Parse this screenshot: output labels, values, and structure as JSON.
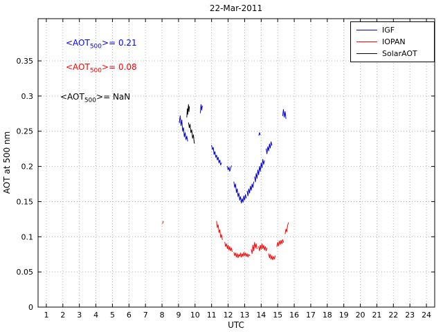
{
  "annotations": [
    {
      "prefix": "<AOT",
      "sub": "500",
      "value": ">= 0.21",
      "color": "#0000ff"
    },
    {
      "prefix": "<AOT",
      "sub": "500",
      "value": ">= 0.08",
      "color": "#ff0000"
    },
    {
      "prefix": "<AOT",
      "sub": "500",
      "value": ">= NaN",
      "color": "#000000"
    }
  ],
  "chart_data": {
    "type": "line",
    "title": "22-Mar-2011",
    "xlabel": "UTC",
    "ylabel": "AOT at 500 nm",
    "xlim": [
      0.5,
      24.5
    ],
    "ylim": [
      0,
      0.41
    ],
    "xticks": [
      1,
      2,
      3,
      4,
      5,
      6,
      7,
      8,
      9,
      10,
      11,
      12,
      13,
      14,
      15,
      16,
      17,
      18,
      19,
      20,
      21,
      22,
      23,
      24
    ],
    "yticks": [
      0,
      0.05,
      0.1,
      0.15,
      0.2,
      0.25,
      0.3,
      0.35
    ],
    "grid": true,
    "grid_color": "#b0b0b0",
    "legend": {
      "position": "upper right",
      "entries": [
        {
          "label": "IGF",
          "color": "#0000cc"
        },
        {
          "label": "IOPAN",
          "color": "#ff0000"
        },
        {
          "label": "SolarAOT",
          "color": "#000000"
        }
      ]
    },
    "series": [
      {
        "name": "IGF",
        "color": "#0000cc",
        "mean_aot_500": 0.21,
        "segments": [
          [
            [
              9.05,
              0.262
            ],
            [
              9.1,
              0.272
            ],
            [
              9.15,
              0.258
            ],
            [
              9.2,
              0.266
            ],
            [
              9.25,
              0.25
            ],
            [
              9.3,
              0.255
            ],
            [
              9.35,
              0.242
            ],
            [
              9.4,
              0.248
            ],
            [
              9.45,
              0.238
            ],
            [
              9.5,
              0.243
            ],
            [
              9.55,
              0.236
            ]
          ],
          [
            [
              10.32,
              0.276
            ],
            [
              10.36,
              0.288
            ],
            [
              10.4,
              0.28
            ],
            [
              10.44,
              0.286
            ]
          ],
          [
            [
              11.0,
              0.23
            ],
            [
              11.05,
              0.224
            ],
            [
              11.1,
              0.227
            ],
            [
              11.15,
              0.217
            ],
            [
              11.2,
              0.221
            ],
            [
              11.25,
              0.213
            ],
            [
              11.3,
              0.216
            ],
            [
              11.35,
              0.209
            ],
            [
              11.4,
              0.213
            ],
            [
              11.45,
              0.205
            ],
            [
              11.5,
              0.209
            ],
            [
              11.55,
              0.202
            ],
            [
              11.6,
              0.205
            ]
          ],
          [
            [
              11.95,
              0.2
            ],
            [
              12.0,
              0.195
            ],
            [
              12.05,
              0.199
            ],
            [
              12.1,
              0.193
            ],
            [
              12.15,
              0.197
            ],
            [
              12.2,
              0.201
            ]
          ],
          [
            [
              12.35,
              0.178
            ],
            [
              12.4,
              0.17
            ],
            [
              12.45,
              0.175
            ],
            [
              12.5,
              0.163
            ],
            [
              12.55,
              0.168
            ],
            [
              12.6,
              0.157
            ],
            [
              12.65,
              0.162
            ],
            [
              12.7,
              0.152
            ],
            [
              12.75,
              0.157
            ],
            [
              12.8,
              0.148
            ],
            [
              12.85,
              0.154
            ],
            [
              12.9,
              0.149
            ],
            [
              12.95,
              0.158
            ],
            [
              13.0,
              0.152
            ],
            [
              13.05,
              0.16
            ],
            [
              13.1,
              0.155
            ]
          ],
          [
            [
              13.15,
              0.165
            ],
            [
              13.2,
              0.158
            ],
            [
              13.25,
              0.168
            ],
            [
              13.3,
              0.162
            ],
            [
              13.35,
              0.172
            ],
            [
              13.4,
              0.166
            ],
            [
              13.45,
              0.175
            ],
            [
              13.5,
              0.17
            ],
            [
              13.55,
              0.178
            ]
          ],
          [
            [
              13.6,
              0.185
            ],
            [
              13.65,
              0.178
            ],
            [
              13.7,
              0.19
            ],
            [
              13.75,
              0.183
            ],
            [
              13.8,
              0.195
            ],
            [
              13.85,
              0.188
            ],
            [
              13.9,
              0.2
            ],
            [
              13.95,
              0.193
            ],
            [
              14.0,
              0.205
            ],
            [
              14.05,
              0.198
            ],
            [
              14.1,
              0.21
            ],
            [
              14.15,
              0.203
            ],
            [
              14.2,
              0.208
            ]
          ],
          [
            [
              13.86,
              0.244
            ],
            [
              13.9,
              0.248
            ],
            [
              13.94,
              0.245
            ]
          ],
          [
            [
              14.3,
              0.225
            ],
            [
              14.35,
              0.218
            ],
            [
              14.4,
              0.228
            ],
            [
              14.45,
              0.222
            ],
            [
              14.5,
              0.232
            ],
            [
              14.55,
              0.226
            ],
            [
              14.6,
              0.235
            ],
            [
              14.65,
              0.23
            ]
          ],
          [
            [
              15.3,
              0.272
            ],
            [
              15.35,
              0.281
            ],
            [
              15.4,
              0.27
            ],
            [
              15.45,
              0.278
            ],
            [
              15.5,
              0.268
            ]
          ]
        ]
      },
      {
        "name": "IOPAN",
        "color": "#ff0000",
        "mean_aot_500": 0.08,
        "segments": [
          [
            [
              8.03,
              0.119
            ],
            [
              8.08,
              0.122
            ]
          ],
          [
            [
              11.3,
              0.122
            ],
            [
              11.35,
              0.113
            ],
            [
              11.4,
              0.117
            ],
            [
              11.45,
              0.106
            ],
            [
              11.5,
              0.11
            ],
            [
              11.55,
              0.099
            ],
            [
              11.6,
              0.103
            ],
            [
              11.65,
              0.096
            ]
          ],
          [
            [
              11.8,
              0.092
            ],
            [
              11.85,
              0.086
            ],
            [
              11.9,
              0.09
            ],
            [
              11.95,
              0.083
            ],
            [
              12.0,
              0.088
            ],
            [
              12.05,
              0.081
            ],
            [
              12.1,
              0.086
            ],
            [
              12.15,
              0.08
            ],
            [
              12.2,
              0.084
            ],
            [
              12.25,
              0.079
            ]
          ],
          [
            [
              12.35,
              0.078
            ],
            [
              12.4,
              0.073
            ],
            [
              12.45,
              0.077
            ],
            [
              12.5,
              0.071
            ],
            [
              12.55,
              0.076
            ],
            [
              12.6,
              0.07
            ],
            [
              12.65,
              0.075
            ],
            [
              12.7,
              0.072
            ],
            [
              12.75,
              0.077
            ],
            [
              12.8,
              0.071
            ],
            [
              12.85,
              0.076
            ],
            [
              12.9,
              0.072
            ],
            [
              12.95,
              0.078
            ],
            [
              13.0,
              0.073
            ],
            [
              13.05,
              0.077
            ],
            [
              13.1,
              0.072
            ],
            [
              13.15,
              0.076
            ],
            [
              13.2,
              0.071
            ],
            [
              13.25,
              0.075
            ],
            [
              13.3,
              0.073
            ]
          ],
          [
            [
              13.4,
              0.082
            ],
            [
              13.45,
              0.076
            ],
            [
              13.5,
              0.088
            ],
            [
              13.55,
              0.08
            ],
            [
              13.6,
              0.092
            ],
            [
              13.65,
              0.084
            ],
            [
              13.7,
              0.09
            ],
            [
              13.75,
              0.083
            ]
          ],
          [
            [
              13.85,
              0.086
            ],
            [
              13.9,
              0.08
            ],
            [
              13.95,
              0.088
            ],
            [
              14.0,
              0.082
            ],
            [
              14.05,
              0.09
            ],
            [
              14.1,
              0.083
            ],
            [
              14.15,
              0.088
            ],
            [
              14.2,
              0.081
            ],
            [
              14.25,
              0.086
            ],
            [
              14.3,
              0.08
            ],
            [
              14.35,
              0.084
            ]
          ],
          [
            [
              14.45,
              0.076
            ],
            [
              14.5,
              0.07
            ],
            [
              14.55,
              0.075
            ],
            [
              14.6,
              0.068
            ],
            [
              14.65,
              0.073
            ],
            [
              14.7,
              0.067
            ],
            [
              14.75,
              0.072
            ],
            [
              14.8,
              0.068
            ],
            [
              14.85,
              0.073
            ]
          ],
          [
            [
              14.95,
              0.086
            ],
            [
              15.0,
              0.092
            ],
            [
              15.05,
              0.087
            ],
            [
              15.1,
              0.094
            ],
            [
              15.15,
              0.089
            ],
            [
              15.2,
              0.095
            ],
            [
              15.25,
              0.09
            ],
            [
              15.3,
              0.096
            ],
            [
              15.35,
              0.092
            ]
          ],
          [
            [
              15.45,
              0.104
            ],
            [
              15.5,
              0.111
            ],
            [
              15.55,
              0.107
            ],
            [
              15.6,
              0.116
            ],
            [
              15.65,
              0.12
            ]
          ]
        ]
      },
      {
        "name": "SolarAOT",
        "color": "#000000",
        "mean_aot_500": null,
        "segments": [
          [
            [
              9.5,
              0.27
            ],
            [
              9.53,
              0.282
            ],
            [
              9.56,
              0.274
            ],
            [
              9.6,
              0.288
            ],
            [
              9.63,
              0.278
            ],
            [
              9.66,
              0.285
            ]
          ],
          [
            [
              9.6,
              0.262
            ],
            [
              9.65,
              0.255
            ],
            [
              9.7,
              0.26
            ],
            [
              9.75,
              0.248
            ],
            [
              9.8,
              0.252
            ],
            [
              9.85,
              0.24
            ],
            [
              9.9,
              0.245
            ],
            [
              9.95,
              0.233
            ]
          ]
        ]
      }
    ]
  }
}
